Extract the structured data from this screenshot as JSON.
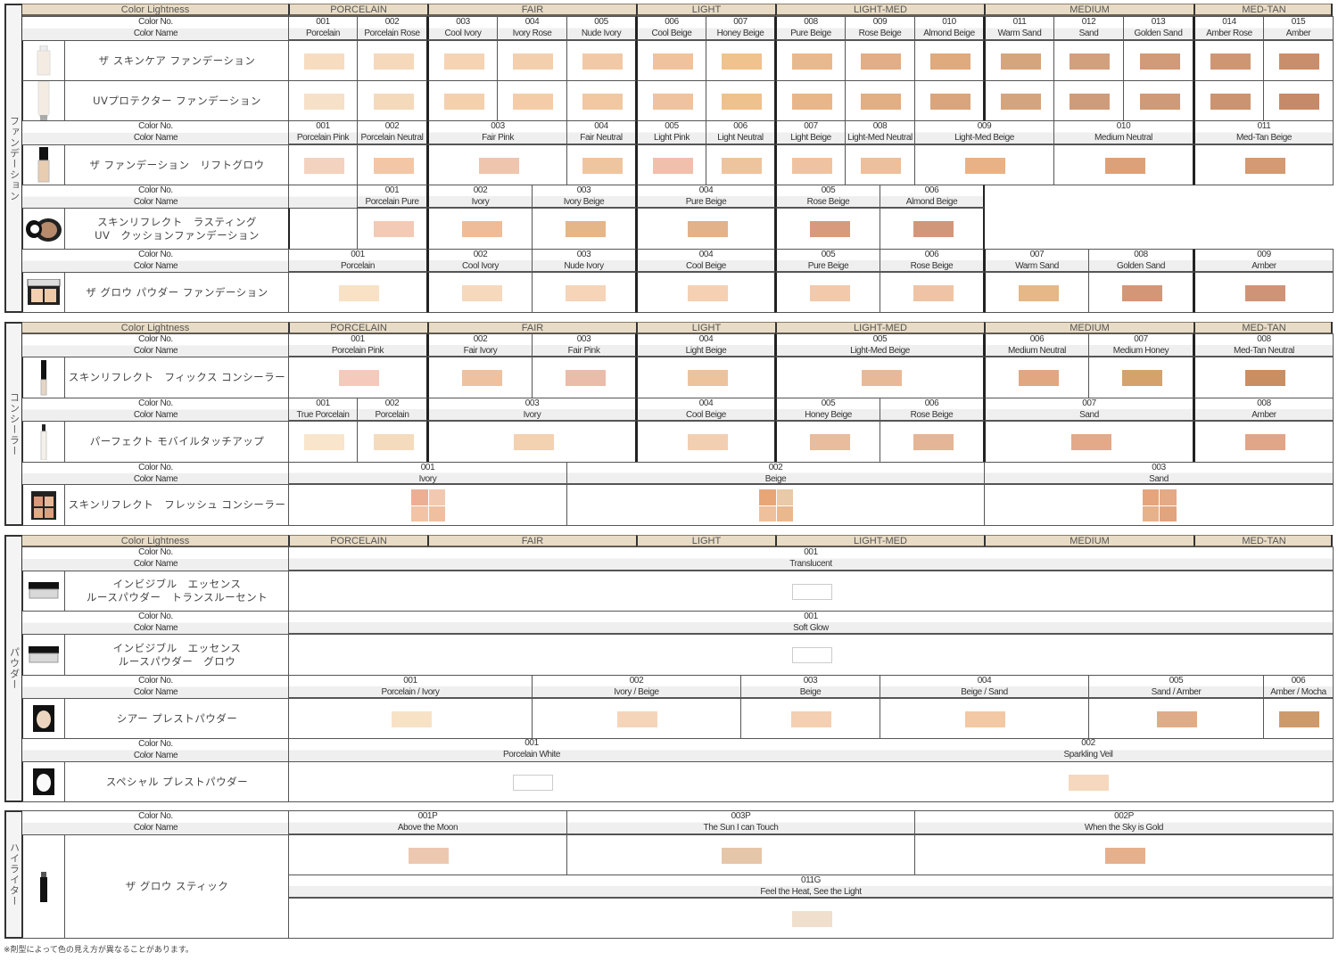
{
  "labels": {
    "color_no": "Color No.",
    "color_name": "Color Name"
  },
  "footnote": "※剤型によって色の見え方が異なることがあります。",
  "sections": [
    {
      "label": "ファンデーション",
      "lightness": {
        "label": "Color Lightness",
        "groups": [
          "PORCELAIN",
          "FAIR",
          "LIGHT",
          "LIGHT-MED",
          "MEDIUM",
          "MED-TAN"
        ]
      },
      "products": [
        {
          "name": "ザ スキンケア ファンデーション",
          "icon": "foundation-bottle-icon",
          "shade_rows": [
            [
              {
                "no": "001",
                "name": "Porcelain",
                "color": "#f7dcc0"
              },
              {
                "no": "002",
                "name": "Porcelain Rose",
                "color": "#f6d8bb"
              },
              {
                "no": "003",
                "name": "Cool Ivory",
                "color": "#f6d3b3"
              },
              {
                "no": "004",
                "name": "Ivory Rose",
                "color": "#f4cfae"
              },
              {
                "no": "005",
                "name": "Nude Ivory",
                "color": "#f2c9a6"
              },
              {
                "no": "006",
                "name": "Cool Beige",
                "color": "#f0c39e"
              },
              {
                "no": "007",
                "name": "Honey Beige",
                "color": "#efc28e"
              },
              {
                "no": "008",
                "name": "Pure Beige",
                "color": "#e8b98e"
              },
              {
                "no": "009",
                "name": "Rose Beige",
                "color": "#e1ae87"
              },
              {
                "no": "010",
                "name": "Almond Beige",
                "color": "#dfaa7e"
              },
              {
                "no": "011",
                "name": "Warm Sand",
                "color": "#d5a57d"
              },
              {
                "no": "012",
                "name": "Sand",
                "color": "#d3a07e"
              },
              {
                "no": "013",
                "name": "Golden Sand",
                "color": "#d19a78"
              },
              {
                "no": "014",
                "name": "Amber Rose",
                "color": "#cf9674"
              },
              {
                "no": "015",
                "name": "Amber",
                "color": "#c98e6b"
              }
            ]
          ]
        },
        {
          "name": "UVプロテクター ファンデーション",
          "icon": "foundation-tube-icon",
          "shade_rows": [
            [
              {
                "color": "#f7e0c8"
              },
              {
                "color": "#f5d9bb"
              },
              {
                "color": "#f5d0ad"
              },
              {
                "color": "#f4cda8"
              },
              {
                "color": "#f1c8a2"
              },
              {
                "color": "#efc39f"
              },
              {
                "color": "#efc18d"
              },
              {
                "color": "#e9b68a"
              },
              {
                "color": "#e2ae84"
              },
              {
                "color": "#daa57c"
              },
              {
                "color": "#d4a47f"
              },
              {
                "color": "#cf9c7b"
              },
              {
                "color": "#cf9a77"
              },
              {
                "color": "#cc9370"
              },
              {
                "color": "#c68a68"
              }
            ]
          ]
        },
        {
          "name": "ザ ファンデーション　リフトグロウ",
          "icon": "liquid-foundation-bottle-icon",
          "shade_rows": [
            [
              {
                "no": "001",
                "name": "Porcelain Pink",
                "color": "#f4d2c0"
              },
              {
                "no": "002",
                "name": "Porcelain Neutral",
                "color": "#f3c7a5"
              },
              {
                "no": "003",
                "name": "Fair Pink",
                "color": "#efc5ae"
              },
              {
                "no": "004",
                "name": "Fair Neutral",
                "color": "#efc5a0"
              },
              {
                "no": "005",
                "name": "Light Pink",
                "color": "#f0c0ad"
              },
              {
                "no": "006",
                "name": "Light Neutral",
                "color": "#eec49f"
              },
              {
                "no": "007",
                "name": "Light Beige",
                "color": "#efc3a1"
              },
              {
                "no": "008",
                "name": "Light-Med Neutral",
                "color": "#ecbf9d"
              },
              {
                "no": "009",
                "name": "Light-Med Beige",
                "color": "#e9b286"
              },
              {
                "no": "010",
                "name": "Medium Neutral",
                "color": "#dda17a"
              },
              {
                "no": "011",
                "name": "Med-Tan Beige",
                "color": "#d39a74"
              }
            ]
          ]
        },
        {
          "name": "スキンリフレクト　ラスティング\nUV　クッションファンデーション",
          "icon": "cushion-compact-icon",
          "shade_rows": [
            [
              {
                "no": "001",
                "name": "Porcelain Pure",
                "color": "#f3cab6"
              },
              {
                "no": "002",
                "name": "Ivory",
                "color": "#eebc98"
              },
              {
                "no": "003",
                "name": "Ivory Beige",
                "color": "#e4b688"
              },
              {
                "no": "004",
                "name": "Pure Beige",
                "color": "#e2b28b"
              },
              {
                "no": "005",
                "name": "Rose Beige",
                "color": "#d89a7c"
              },
              {
                "no": "006",
                "name": "Almond Beige",
                "color": "#d1977a"
              }
            ]
          ]
        },
        {
          "name": "ザ グロウ パウダー ファンデーション",
          "icon": "powder-compact-icon",
          "shade_rows": [
            [
              {
                "no": "001",
                "name": "Porcelain",
                "color": "#f8e1c4"
              },
              {
                "no": "002",
                "name": "Cool Ivory",
                "color": "#f6d8bc"
              },
              {
                "no": "003",
                "name": "Nude Ivory",
                "color": "#f5d4b8"
              },
              {
                "no": "004",
                "name": "Cool Beige",
                "color": "#f5d0b3"
              },
              {
                "no": "005",
                "name": "Pure Beige",
                "color": "#f2c9ab"
              },
              {
                "no": "006",
                "name": "Rose Beige",
                "color": "#efc4a6"
              },
              {
                "no": "007",
                "name": "Warm Sand",
                "color": "#e6b787"
              },
              {
                "no": "008",
                "name": "Golden Sand",
                "color": "#d39777"
              },
              {
                "no": "009",
                "name": "Amber",
                "color": "#cf9478"
              }
            ]
          ]
        }
      ]
    },
    {
      "label": "コンシーラー",
      "lightness": {
        "label": "Color Lightness",
        "groups": [
          "PORCELAIN",
          "FAIR",
          "LIGHT",
          "LIGHT-MED",
          "MEDIUM",
          "MED-TAN"
        ]
      },
      "products": [
        {
          "name": "スキンリフレクト　フィックス コンシーラー",
          "icon": "concealer-wand-icon",
          "shade_rows": [
            [
              {
                "no": "001",
                "name": "Porcelain Pink",
                "color": "#f6c9bd"
              },
              {
                "no": "002",
                "name": "Fair Ivory",
                "color": "#eec1a0"
              },
              {
                "no": "003",
                "name": "Fair Pink",
                "color": "#eabdaa"
              },
              {
                "no": "004",
                "name": "Light Beige",
                "color": "#edc39d"
              },
              {
                "no": "005",
                "name": "Light-Med Beige",
                "color": "#e8b999"
              },
              {
                "no": "006",
                "name": "Medium Neutral",
                "color": "#e1a781"
              },
              {
                "no": "007",
                "name": "Medium Honey",
                "color": "#d6a26b"
              },
              {
                "no": "008",
                "name": "Med-Tan Neutral",
                "color": "#c98f63"
              }
            ]
          ]
        },
        {
          "name": "パーフェクト モバイルタッチアップ",
          "icon": "touchup-pen-icon",
          "shade_rows": [
            [
              {
                "no": "001",
                "name": "True Porcelain",
                "color": "#f8e5cc"
              },
              {
                "no": "002",
                "name": "Porcelain",
                "color": "#f5dbbd"
              },
              {
                "no": "003",
                "name": "Ivory",
                "color": "#f3d2b1"
              },
              {
                "no": "004",
                "name": "Cool Beige",
                "color": "#f3cfb1"
              },
              {
                "no": "005",
                "name": "Honey Beige",
                "color": "#e8bc9d"
              },
              {
                "no": "006",
                "name": "Rose Beige",
                "color": "#e4b596"
              },
              {
                "no": "007",
                "name": "Sand",
                "color": "#e4a989"
              },
              {
                "no": "008",
                "name": "Amber",
                "color": "#e1a588"
              }
            ]
          ]
        },
        {
          "name": "スキンリフレクト　フレッシュ コンシーラー",
          "icon": "concealer-palette-icon",
          "shade_rows": [
            [
              {
                "no": "001",
                "name": "Ivory",
                "colors": [
                  "#ecaf94",
                  "#f1c9b0",
                  "#f2c4a5",
                  "#eec0a0"
                ]
              },
              {
                "no": "002",
                "name": "Beige",
                "colors": [
                  "#e8a576",
                  "#e8c9a8",
                  "#efc09c",
                  "#e9b88f"
                ]
              },
              {
                "no": "003",
                "name": "Sand",
                "colors": [
                  "#e6a47c",
                  "#e4a985",
                  "#e6b28b",
                  "#e0a47f"
                ]
              }
            ]
          ]
        }
      ]
    },
    {
      "label": "パウダー",
      "lightness": {
        "label": "Color Lightness",
        "groups": [
          "PORCELAIN",
          "FAIR",
          "LIGHT",
          "LIGHT-MED",
          "MEDIUM",
          "MED-TAN"
        ]
      },
      "products": [
        {
          "name": "インビジブル　エッセンス\nルースパウダー　トランスルーセント",
          "icon": "loose-powder-jar-icon",
          "shade_rows": [
            [
              {
                "no": "001",
                "name": "Translucent",
                "color": "#ffffff"
              }
            ]
          ]
        },
        {
          "name": "インビジブル　エッセンス\nルースパウダー　グロウ",
          "icon": "loose-powder-jar-icon",
          "shade_rows": [
            [
              {
                "no": "001",
                "name": "Soft Glow",
                "color": "#ffffff"
              }
            ]
          ]
        },
        {
          "name": "シアー プレストパウダー",
          "icon": "pressed-powder-compact-icon",
          "shade_rows": [
            [
              {
                "no": "001",
                "name": "Porcelain / Ivory",
                "color": "#f8e2c6"
              },
              {
                "no": "002",
                "name": "Ivory / Beige",
                "color": "#f5d5ba"
              },
              {
                "no": "003",
                "name": "Beige",
                "color": "#f4cfb1"
              },
              {
                "no": "004",
                "name": "Beige / Sand",
                "color": "#f2c9a4"
              },
              {
                "no": "005",
                "name": "Sand / Amber",
                "color": "#dfac8a"
              },
              {
                "no": "006",
                "name": "Amber / Mocha",
                "color": "#cd9a6c"
              }
            ]
          ]
        },
        {
          "name": "スペシャル プレストパウダー",
          "icon": "special-powder-compact-icon",
          "shade_rows": [
            [
              {
                "no": "001",
                "name": "Porcelain White",
                "color": "#ffffff"
              },
              {
                "no": "002",
                "name": "Sparkling Veil",
                "color": "#f5d8bd"
              }
            ]
          ]
        }
      ]
    },
    {
      "label": "ハイライター",
      "products": [
        {
          "name": "ザ グロウ スティック",
          "icon": "highlighter-stick-icon",
          "shade_rows": [
            [
              {
                "no": "001P",
                "name": "Above the Moon",
                "color": "#edc8b0"
              },
              {
                "no": "003P",
                "name": "The Sun I can Touch",
                "color": "#e6c6a8"
              },
              {
                "no": "002P",
                "name": "When the Sky is Gold",
                "color": "#e6b08c"
              }
            ],
            [
              {
                "no": "011G",
                "name": "Feel the Heat, See the Light",
                "color": "#f0dfcc"
              }
            ]
          ]
        }
      ]
    }
  ]
}
